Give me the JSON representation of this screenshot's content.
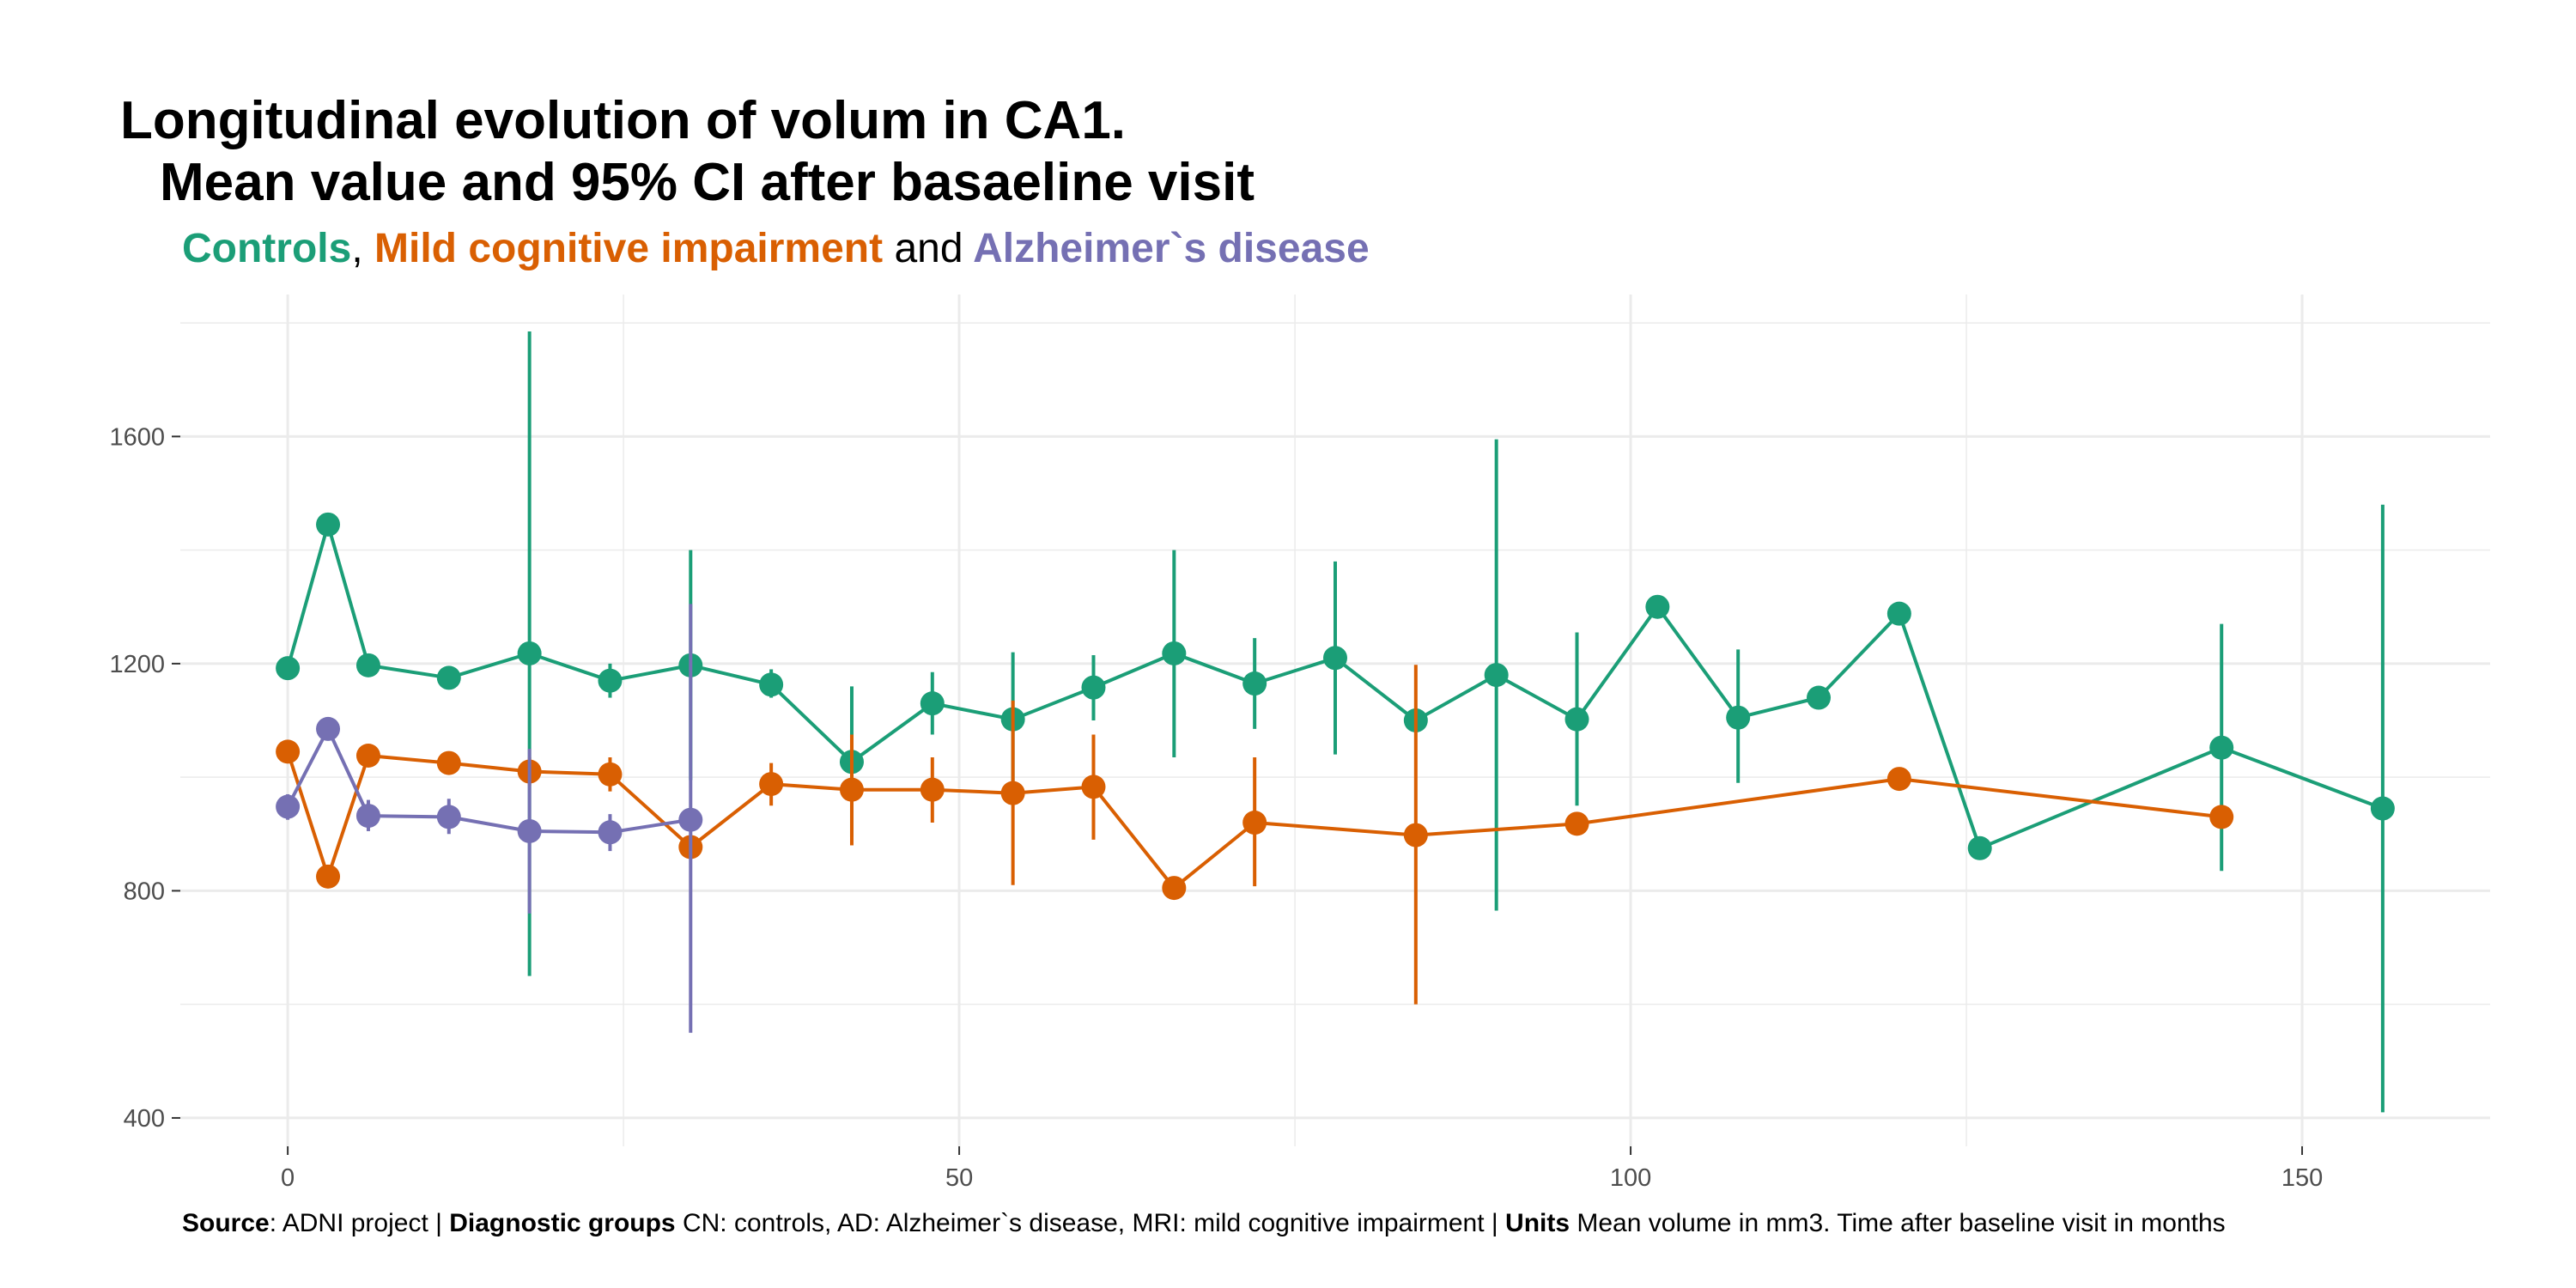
{
  "colors": {
    "controls": "#1b9e77",
    "mci": "#d95f02",
    "ad": "#7570b3",
    "grid": "#ebebeb",
    "axis_text": "#4d4d4d"
  },
  "title": {
    "line1": "Longitudinal evolution of volum in CA1.",
    "line2": "Mean value and 95% CI after basaeline visit"
  },
  "subtitle": {
    "controls": "Controls",
    "sep1": ",",
    "mci": "Mild cognitive impairment",
    "and": "and",
    "ad": "Alzheimer`s disease"
  },
  "caption": {
    "source_label": "Source",
    "source_text": ": ADNI project | ",
    "groups_label": "Diagnostic groups",
    "groups_text": " CN: controls, AD: Alzheimer`s disease, MRI: mild cognitive impairment | ",
    "units_label": "Units",
    "units_text": " Mean volume in mm3. Time after baseline visit in months"
  },
  "chart_data": {
    "type": "line",
    "xlim": [
      -8,
      164
    ],
    "ylim": [
      350,
      1850
    ],
    "x_ticks": [
      0,
      50,
      100,
      150
    ],
    "x_minor_ticks": [
      25,
      75,
      125
    ],
    "y_ticks": [
      400,
      800,
      1200,
      1600
    ],
    "y_minor_ticks": [
      600,
      1000,
      1400,
      1800
    ],
    "grid": true,
    "series": [
      {
        "key": "controls",
        "points": [
          {
            "x": 0,
            "y": 1192,
            "lo": 1175,
            "hi": 1210
          },
          {
            "x": 3,
            "y": 1445,
            "lo": 1445,
            "hi": 1445
          },
          {
            "x": 6,
            "y": 1197,
            "lo": 1180,
            "hi": 1212
          },
          {
            "x": 12,
            "y": 1175,
            "lo": 1155,
            "hi": 1195
          },
          {
            "x": 18,
            "y": 1218,
            "lo": 650,
            "hi": 1785
          },
          {
            "x": 24,
            "y": 1170,
            "lo": 1140,
            "hi": 1200
          },
          {
            "x": 30,
            "y": 1197,
            "lo": 995,
            "hi": 1400
          },
          {
            "x": 36,
            "y": 1163,
            "lo": 1140,
            "hi": 1190
          },
          {
            "x": 42,
            "y": 1027,
            "lo": 895,
            "hi": 1160
          },
          {
            "x": 48,
            "y": 1130,
            "lo": 1075,
            "hi": 1185
          },
          {
            "x": 54,
            "y": 1102,
            "lo": 985,
            "hi": 1220
          },
          {
            "x": 60,
            "y": 1158,
            "lo": 1100,
            "hi": 1215
          },
          {
            "x": 66,
            "y": 1218,
            "lo": 1035,
            "hi": 1400
          },
          {
            "x": 72,
            "y": 1165,
            "lo": 1085,
            "hi": 1245
          },
          {
            "x": 78,
            "y": 1210,
            "lo": 1040,
            "hi": 1380
          },
          {
            "x": 84,
            "y": 1100,
            "lo": 1100,
            "hi": 1100
          },
          {
            "x": 90,
            "y": 1180,
            "lo": 765,
            "hi": 1595
          },
          {
            "x": 96,
            "y": 1102,
            "lo": 950,
            "hi": 1255
          },
          {
            "x": 102,
            "y": 1300,
            "lo": 1300,
            "hi": 1300
          },
          {
            "x": 108,
            "y": 1105,
            "lo": 990,
            "hi": 1225
          },
          {
            "x": 114,
            "y": 1140,
            "lo": 1140,
            "hi": 1140
          },
          {
            "x": 120,
            "y": 1288,
            "lo": 1288,
            "hi": 1288
          },
          {
            "x": 126,
            "y": 875,
            "lo": 875,
            "hi": 875
          },
          {
            "x": 144,
            "y": 1052,
            "lo": 835,
            "hi": 1270
          },
          {
            "x": 156,
            "y": 945,
            "lo": 410,
            "hi": 1480
          }
        ]
      },
      {
        "key": "mci",
        "points": [
          {
            "x": 0,
            "y": 1045,
            "lo": 1025,
            "hi": 1065
          },
          {
            "x": 3,
            "y": 825,
            "lo": 825,
            "hi": 825
          },
          {
            "x": 6,
            "y": 1038,
            "lo": 1020,
            "hi": 1055
          },
          {
            "x": 12,
            "y": 1025,
            "lo": 1005,
            "hi": 1045
          },
          {
            "x": 18,
            "y": 1010,
            "lo": 985,
            "hi": 1035
          },
          {
            "x": 24,
            "y": 1005,
            "lo": 975,
            "hi": 1035
          },
          {
            "x": 30,
            "y": 877,
            "lo": 860,
            "hi": 895
          },
          {
            "x": 36,
            "y": 988,
            "lo": 950,
            "hi": 1025
          },
          {
            "x": 42,
            "y": 978,
            "lo": 880,
            "hi": 1075
          },
          {
            "x": 48,
            "y": 978,
            "lo": 920,
            "hi": 1035
          },
          {
            "x": 54,
            "y": 972,
            "lo": 810,
            "hi": 1135
          },
          {
            "x": 60,
            "y": 983,
            "lo": 890,
            "hi": 1075
          },
          {
            "x": 66,
            "y": 805,
            "lo": 805,
            "hi": 805
          },
          {
            "x": 72,
            "y": 920,
            "lo": 808,
            "hi": 1035
          },
          {
            "x": 84,
            "y": 898,
            "lo": 600,
            "hi": 1198
          },
          {
            "x": 96,
            "y": 918,
            "lo": 918,
            "hi": 918
          },
          {
            "x": 120,
            "y": 997,
            "lo": 997,
            "hi": 997
          },
          {
            "x": 144,
            "y": 930,
            "lo": 930,
            "hi": 930
          }
        ]
      },
      {
        "key": "ad",
        "points": [
          {
            "x": 0,
            "y": 948,
            "lo": 925,
            "hi": 970
          },
          {
            "x": 3,
            "y": 1085,
            "lo": 1085,
            "hi": 1085
          },
          {
            "x": 6,
            "y": 932,
            "lo": 905,
            "hi": 960
          },
          {
            "x": 12,
            "y": 930,
            "lo": 900,
            "hi": 962
          },
          {
            "x": 18,
            "y": 905,
            "lo": 760,
            "hi": 1050
          },
          {
            "x": 24,
            "y": 903,
            "lo": 870,
            "hi": 935
          },
          {
            "x": 30,
            "y": 925,
            "lo": 550,
            "hi": 1305
          }
        ]
      }
    ]
  }
}
